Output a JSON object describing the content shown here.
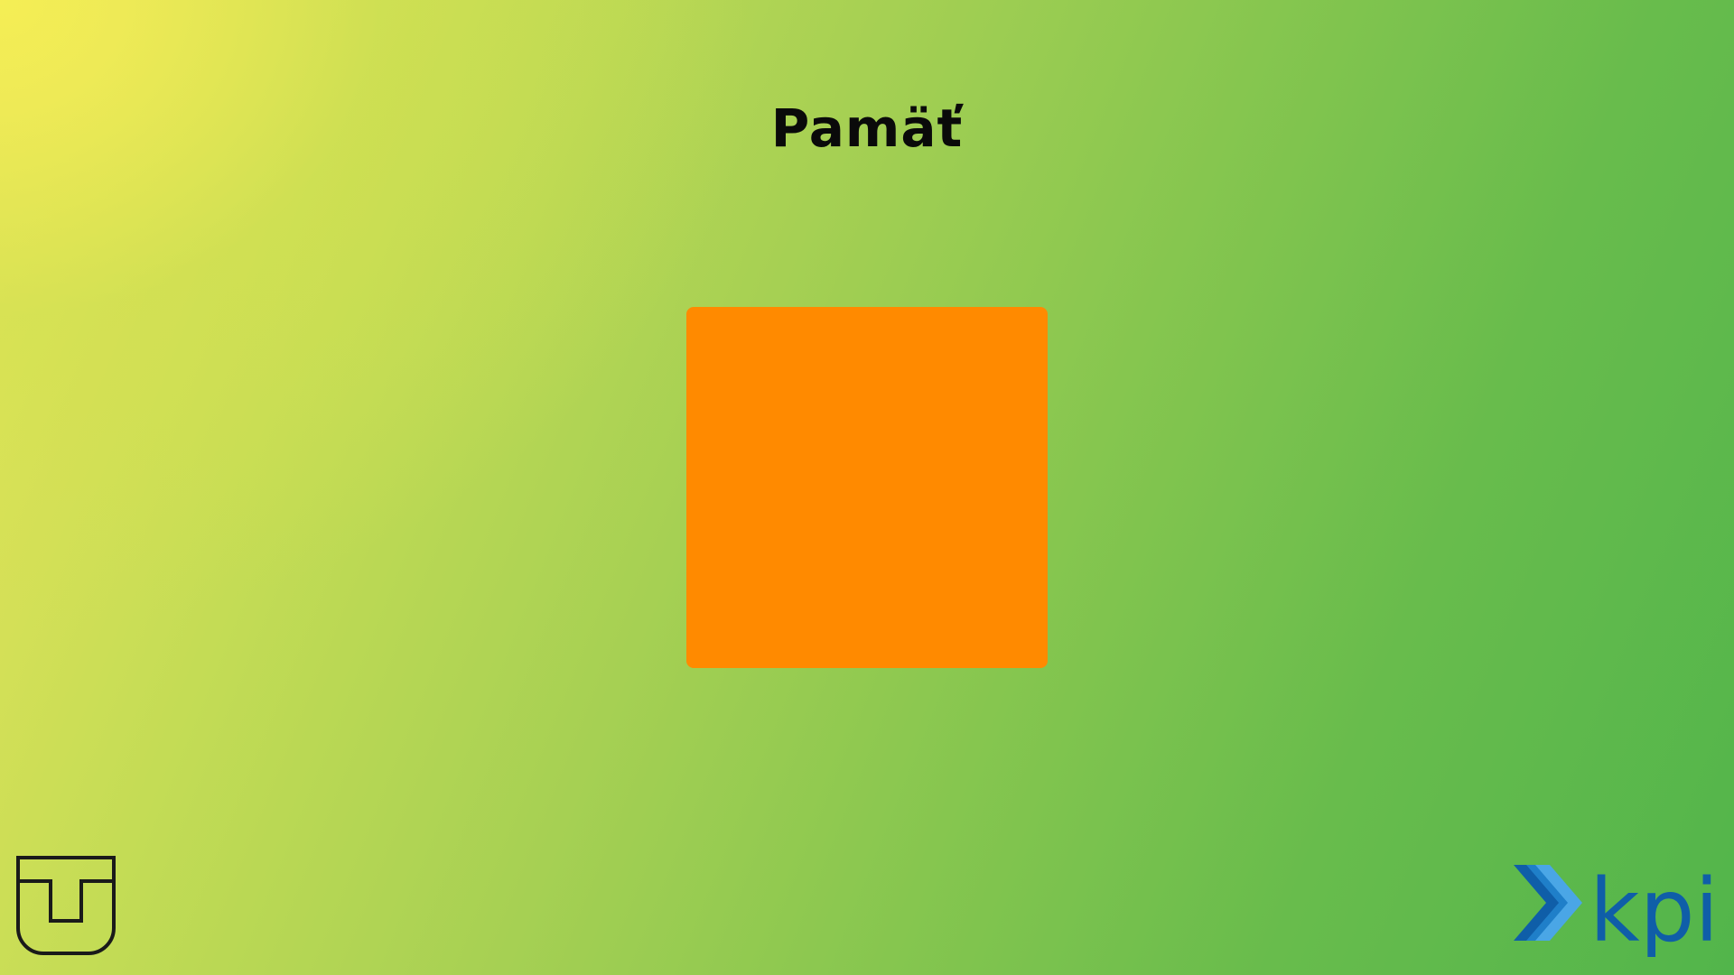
{
  "page": {
    "title": "Pamäť",
    "background_colors": [
      "#f2ec55",
      "#a6d053",
      "#52b54b"
    ]
  },
  "card": {
    "color": "#ff8a00",
    "state": "face-down"
  },
  "logos": {
    "left": {
      "icon": "tu-shield-logo-icon",
      "color": "#1a1a1a"
    },
    "right": {
      "icon": "kpi-chevron-logo-icon",
      "text": "kpi",
      "colors": [
        "#0f5ea8",
        "#1f7fc9",
        "#4aa6e6"
      ]
    }
  }
}
